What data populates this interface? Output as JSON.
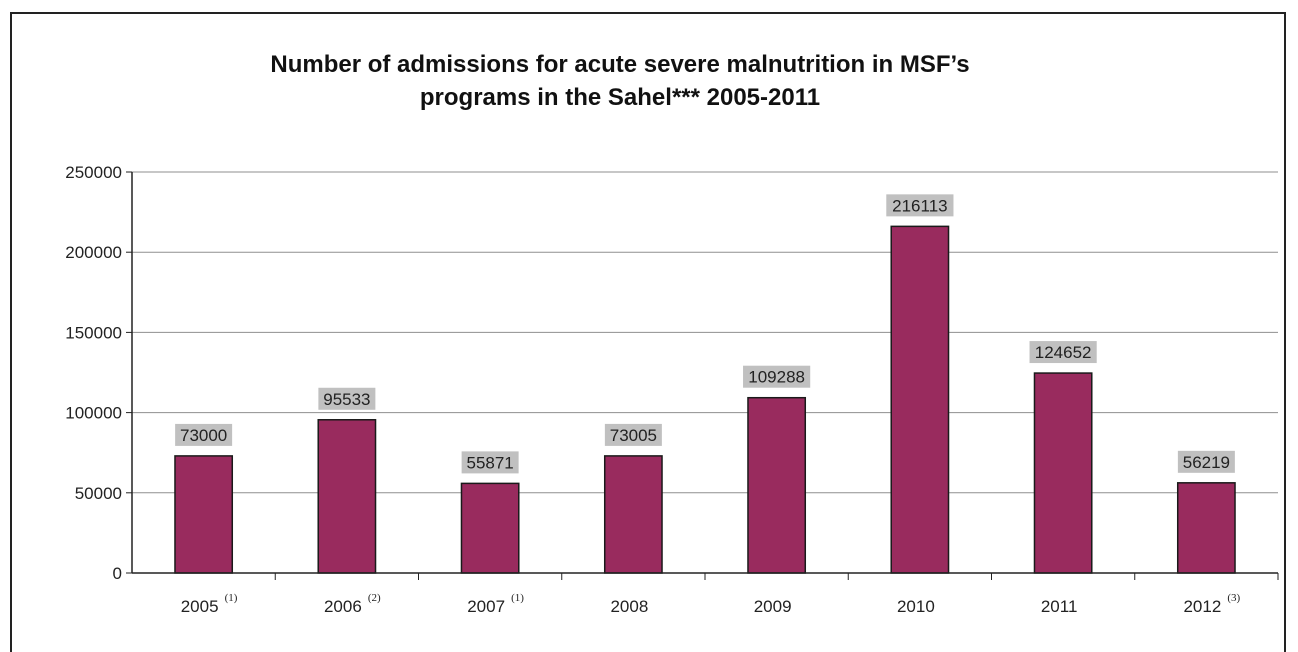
{
  "chart_data": {
    "type": "bar",
    "title_lines": [
      "Number of admissions for acute severe malnutrition in MSF’s",
      "programs in the Sahel*** 2005-2011"
    ],
    "categories": [
      "2005",
      "2006",
      "2007",
      "2008",
      "2009",
      "2010",
      "2011",
      "2012"
    ],
    "category_notes": [
      "(1)",
      "(2)",
      "(1)",
      "",
      "",
      "",
      "",
      "(3)"
    ],
    "values": [
      73000,
      95533,
      55871,
      73005,
      109288,
      216113,
      124652,
      56219
    ],
    "data_labels": [
      "73000",
      "95533",
      "55871",
      "73005",
      "109288",
      "216113",
      "124652",
      "56219"
    ],
    "yticks": [
      0,
      50000,
      100000,
      150000,
      200000,
      250000
    ],
    "ylim": [
      0,
      250000
    ],
    "grid": true,
    "colors": {
      "bar": "#992B5E",
      "bar_outline": "#1a1a1a",
      "label_bg": "#C0C0C0",
      "grid": "#8f8f8f"
    }
  }
}
